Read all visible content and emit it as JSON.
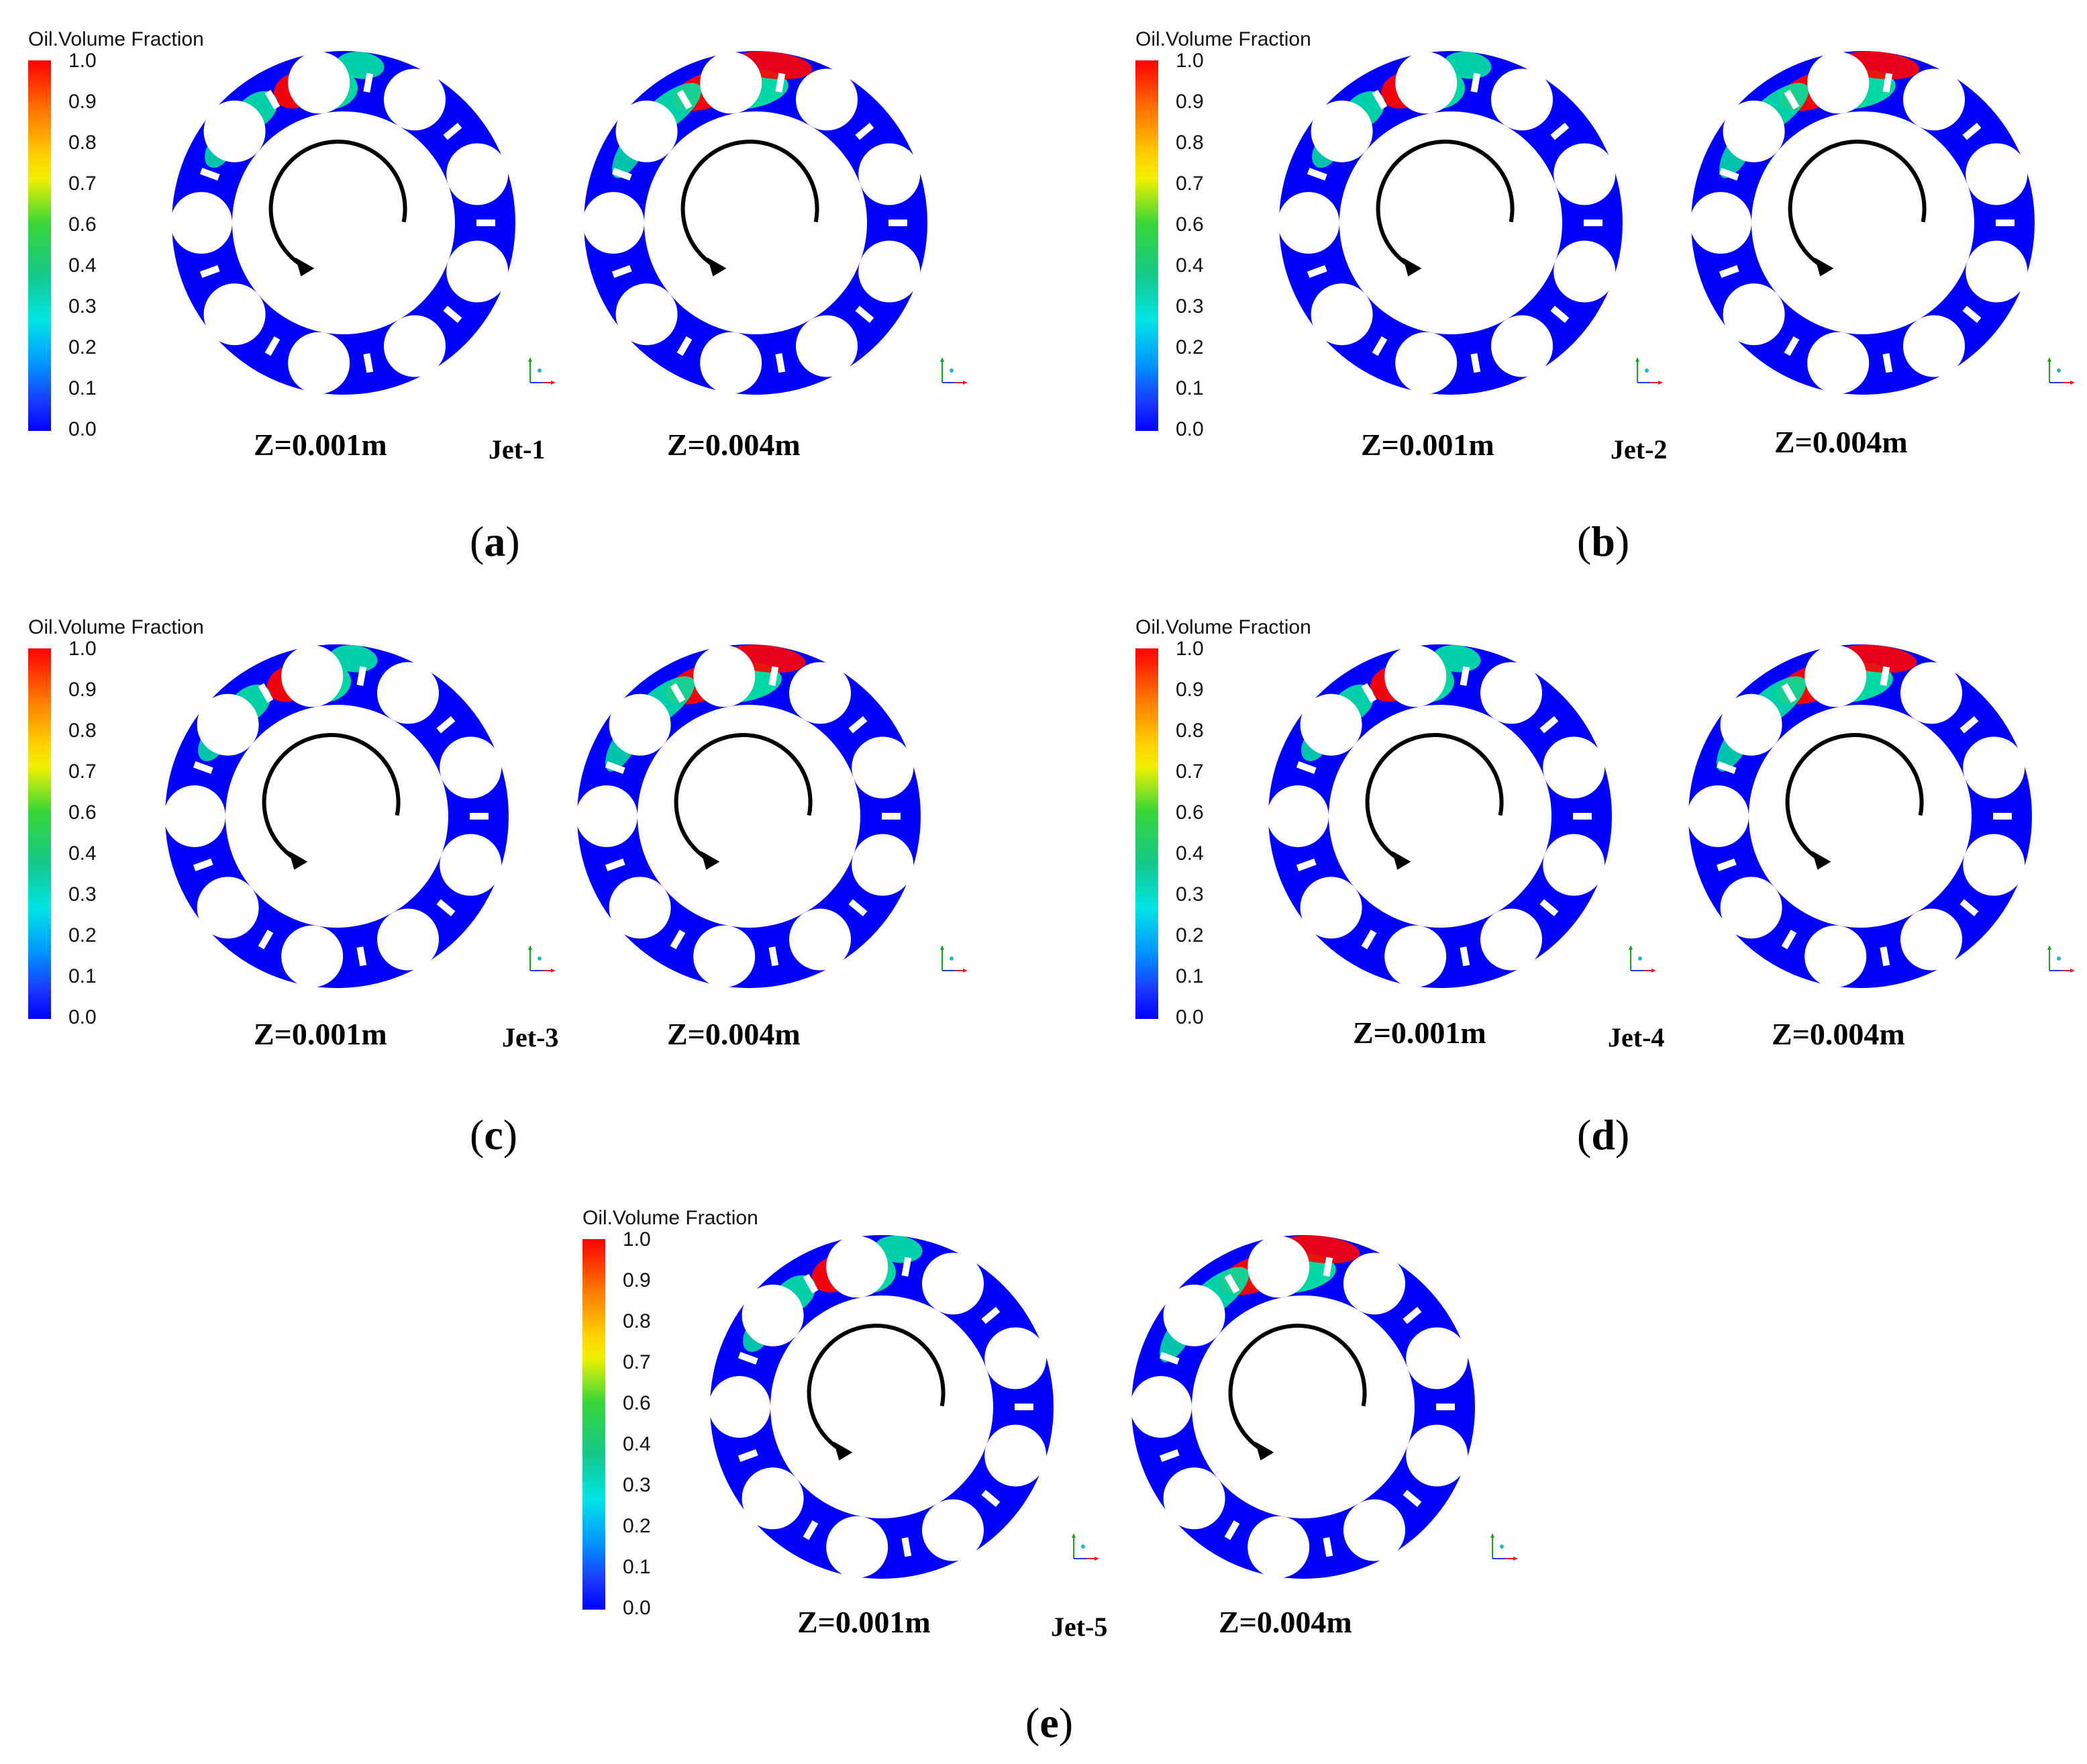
{
  "legend": {
    "title": "Oil.Volume Fraction",
    "ticks": [
      "1.0",
      "0.9",
      "0.8",
      "0.7",
      "0.6",
      "0.4",
      "0.3",
      "0.2",
      "0.1",
      "0.0"
    ]
  },
  "colors": {
    "bearing_fill": "#0000ff",
    "oil_high": "#ff0000",
    "oil_mid": "#00e5a0",
    "arrow": "#000000"
  },
  "panels": [
    {
      "caption_open": "(",
      "caption_letter": "a",
      "caption_close": ")",
      "jet": "Jet-1",
      "left_z": "Z=0.001m",
      "right_z": "Z=0.004m"
    },
    {
      "caption_open": "(",
      "caption_letter": "b",
      "caption_close": ")",
      "jet": "Jet-2",
      "left_z": "Z=0.001m",
      "right_z": "Z=0.004m"
    },
    {
      "caption_open": "(",
      "caption_letter": "c",
      "caption_close": ")",
      "jet": "Jet-3",
      "left_z": "Z=0.001m",
      "right_z": "Z=0.004m"
    },
    {
      "caption_open": "(",
      "caption_letter": "d",
      "caption_close": ")",
      "jet": "Jet-4",
      "left_z": "Z=0.001m",
      "right_z": "Z=0.004m"
    },
    {
      "caption_open": "(",
      "caption_letter": "e",
      "caption_close": ")",
      "jet": "Jet-5",
      "left_z": "Z=0.001m",
      "right_z": "Z=0.004m"
    }
  ]
}
